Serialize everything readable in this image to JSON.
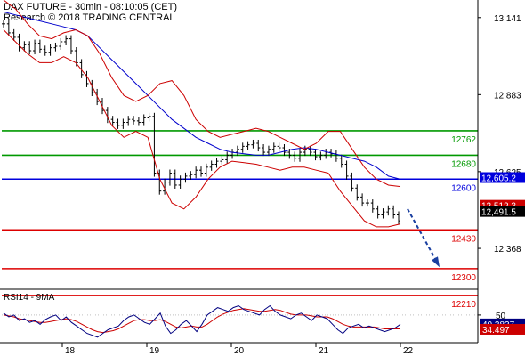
{
  "header": {
    "title": "DAX FUTURE - 30min - 08:10:05 (CET)",
    "research": "Research © 2018 TRADING CENTRAL"
  },
  "colors": {
    "candles": "#000000",
    "bands": "#cc0000",
    "moving_average": "#0000cc",
    "support": "#dd0000",
    "resistance": "#009900",
    "pivot": "#0000dd",
    "arrow": "#1a3fa0",
    "last_price_box": "#000000",
    "prev_price_box": "#cc0000",
    "rsi_line": "#000080",
    "rsi_ma": "#cc0000"
  },
  "chart_data": [
    {
      "type": "line",
      "title": "DAX FUTURE - 30min",
      "x_tick_labels": [
        "18",
        "19",
        "20",
        "21",
        "22"
      ],
      "ylim": [
        12240,
        13200
      ],
      "y_tick_labels": [
        "13,141",
        "12,883",
        "12,625",
        "12,368"
      ],
      "y_ticks": [
        13141,
        12883,
        12625,
        12368
      ],
      "grid": false,
      "horizontal_levels": [
        {
          "label": "12762",
          "value": 12762,
          "kind": "resistance"
        },
        {
          "label": "12680",
          "value": 12680,
          "kind": "resistance"
        },
        {
          "label": "12600",
          "value": 12600,
          "kind": "pivot"
        },
        {
          "label": "12430",
          "value": 12430,
          "kind": "support"
        },
        {
          "label": "12300",
          "value": 12300,
          "kind": "support"
        },
        {
          "label": "12210",
          "value": 12210,
          "kind": "support"
        }
      ],
      "price_boxes": [
        {
          "label": "12,605.2",
          "value": 12605.2,
          "kind": "pivot"
        },
        {
          "label": "12,512.3",
          "value": 12512.3,
          "kind": "prev"
        },
        {
          "label": "12,491.5",
          "value": 12491.5,
          "kind": "last"
        }
      ],
      "series": [
        {
          "type": "ohlc",
          "values": [
            13120,
            13090,
            13075,
            13040,
            13050,
            13030,
            13055,
            13035,
            13025,
            13040,
            13045,
            13060,
            13070,
            13030,
            12990,
            12950,
            12920,
            12890,
            12860,
            12830,
            12800,
            12790,
            12780,
            12790,
            12800,
            12795,
            12790,
            12805,
            12810,
            12620,
            12560,
            12590,
            12620,
            12580,
            12600,
            12610,
            12615,
            12630,
            12620,
            12640,
            12650,
            12660,
            12665,
            12680,
            12690,
            12700,
            12710,
            12715,
            12720,
            12705,
            12690,
            12700,
            12710,
            12705,
            12690,
            12680,
            12670,
            12690,
            12700,
            12690,
            12675,
            12680,
            12690,
            12685,
            12670,
            12650,
            12610,
            12570,
            12540,
            12520,
            12520,
            12500,
            12480,
            12490,
            12500,
            12480,
            12460
          ]
        },
        {
          "type": "line",
          "name": "",
          "values": [
            13160,
            13150,
            13140,
            13130,
            13120,
            13110,
            13100,
            13080,
            13040,
            13000,
            12960,
            12920,
            12880,
            12840,
            12800,
            12770,
            12740,
            12720,
            12700,
            12690,
            12685,
            12680,
            12680,
            12690,
            12700,
            12705,
            12700,
            12690,
            12680,
            12670,
            12660,
            12640,
            12610,
            12600
          ]
        },
        {
          "type": "line",
          "name": "",
          "values": [
            13200,
            13170,
            13120,
            13080,
            13070,
            13090,
            13100,
            13080,
            13020,
            12940,
            12880,
            12860,
            12880,
            12920,
            12930,
            12880,
            12800,
            12760,
            12740,
            12750,
            12760,
            12770,
            12760,
            12740,
            12720,
            12700,
            12720,
            12760,
            12760,
            12700,
            12640,
            12600,
            12580,
            12575
          ]
        },
        {
          "type": "line",
          "name": "",
          "values": [
            13100,
            13060,
            13020,
            12990,
            12990,
            13010,
            12990,
            12940,
            12860,
            12780,
            12740,
            12760,
            12740,
            12600,
            12520,
            12500,
            12540,
            12600,
            12640,
            12660,
            12655,
            12650,
            12640,
            12630,
            12640,
            12640,
            12630,
            12620,
            12560,
            12510,
            12460,
            12440,
            12440,
            12450
          ]
        }
      ]
    },
    {
      "type": "line",
      "title": "RSI14 - 9MA",
      "ylim": [
        20,
        75
      ],
      "y_tick_labels": [
        "50"
      ],
      "y_ticks": [
        50
      ],
      "value_labels": [
        {
          "label": "40.3837",
          "value": 40.3837,
          "series": "RSI14"
        },
        {
          "label": "34.497",
          "value": 34.497,
          "series": "9MA"
        }
      ],
      "series": [
        {
          "name": "RSI14",
          "values": [
            52,
            48,
            50,
            44,
            46,
            42,
            44,
            40,
            45,
            48,
            50,
            44,
            48,
            42,
            38,
            34,
            30,
            28,
            26,
            30,
            34,
            36,
            38,
            44,
            48,
            50,
            46,
            42,
            40,
            46,
            52,
            38,
            30,
            34,
            40,
            44,
            38,
            32,
            40,
            50,
            54,
            58,
            56,
            54,
            58,
            60,
            56,
            54,
            52,
            50,
            56,
            60,
            54,
            50,
            48,
            46,
            50,
            52,
            48,
            44,
            50,
            48,
            46,
            40,
            34,
            30,
            36,
            38,
            40,
            36,
            38,
            36,
            34,
            32,
            34,
            36,
            40
          ]
        },
        {
          "name": "9MA",
          "values": [
            50,
            49,
            48,
            46,
            45,
            44,
            43,
            42,
            42,
            43,
            44,
            45,
            46,
            45,
            43,
            40,
            37,
            34,
            32,
            31,
            32,
            33,
            35,
            38,
            41,
            44,
            45,
            45,
            44,
            44,
            45,
            43,
            40,
            37,
            36,
            37,
            38,
            37,
            37,
            40,
            44,
            48,
            51,
            53,
            55,
            56,
            57,
            56,
            55,
            54,
            54,
            55,
            56,
            55,
            53,
            51,
            50,
            50,
            50,
            49,
            48,
            48,
            48,
            46,
            43,
            40,
            38,
            37,
            37,
            37,
            37,
            37,
            36,
            35,
            35,
            35,
            35
          ]
        }
      ]
    }
  ]
}
